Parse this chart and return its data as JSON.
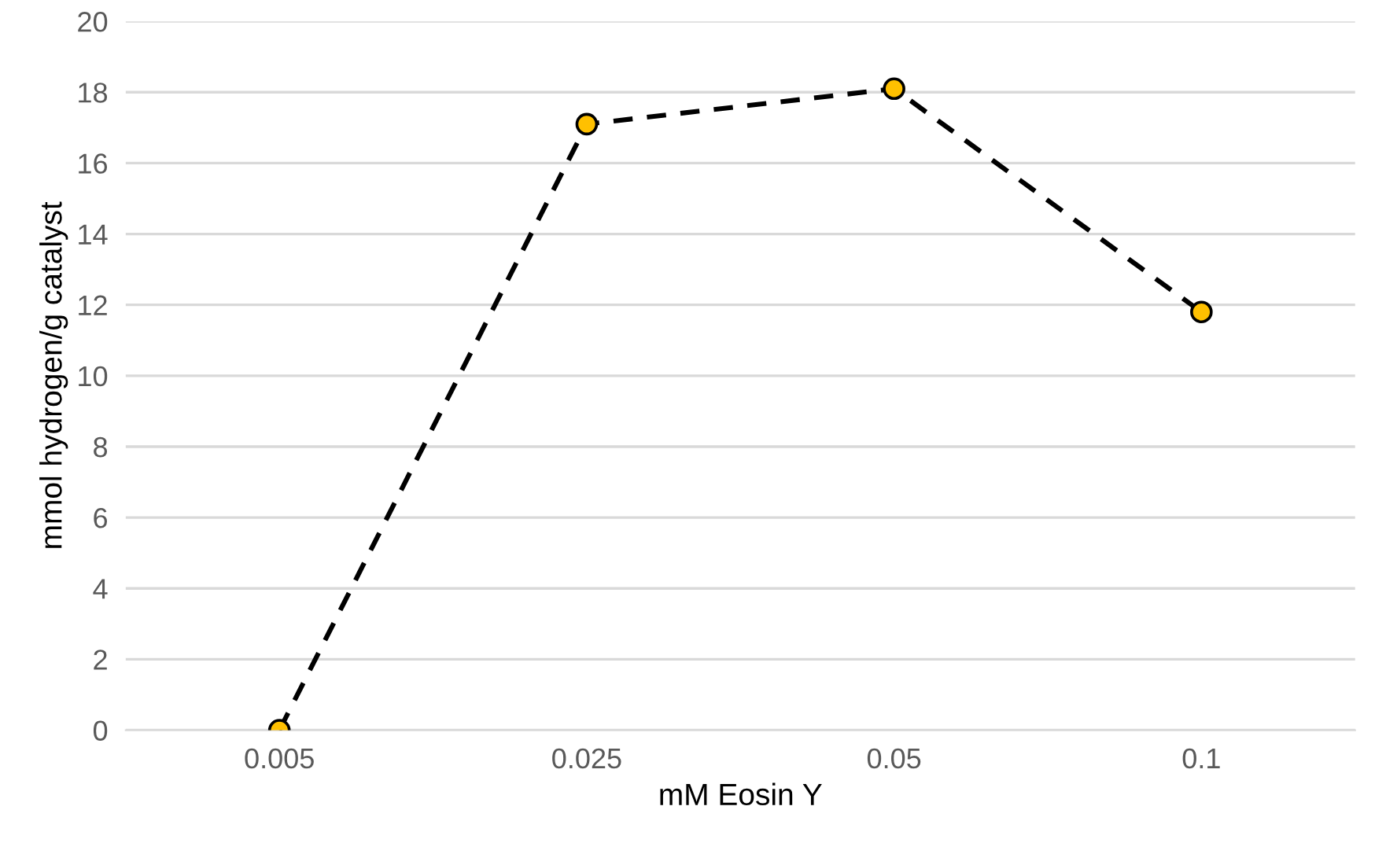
{
  "chart_data": {
    "type": "line",
    "xlabel": "mM Eosin Y",
    "ylabel": "mmol hydrogen/g catalyst",
    "categories": [
      "0.005",
      "0.025",
      "0.05",
      "0.1"
    ],
    "series": [
      {
        "color": "#ffc000",
        "values": [
          0,
          17.1,
          18.1,
          11.8
        ]
      }
    ],
    "marker": "circle",
    "line_style": "dashed",
    "ylim": [
      0,
      20
    ],
    "yticks": [
      0,
      2,
      4,
      6,
      8,
      10,
      12,
      14,
      16,
      18,
      20
    ],
    "grid": "y",
    "legend": false
  }
}
